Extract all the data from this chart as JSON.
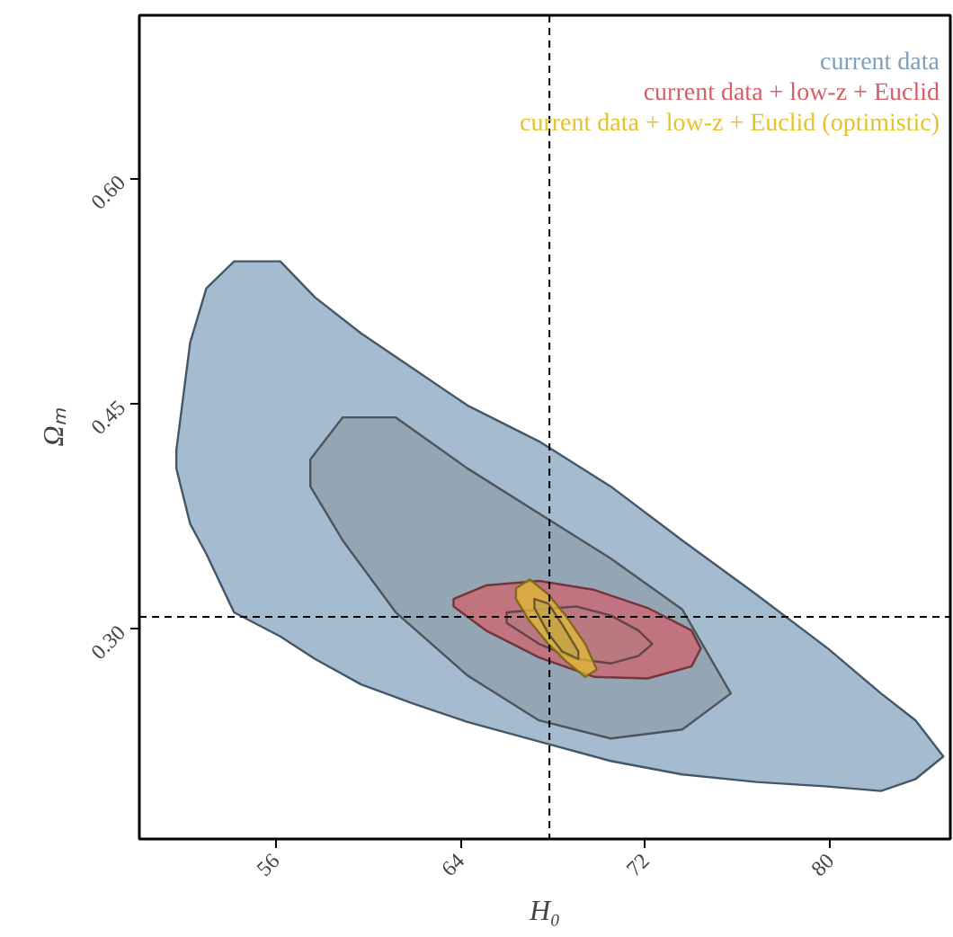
{
  "chart_data": {
    "type": "area",
    "xlabel": "H₀",
    "ylabel": "Ωₘ",
    "xlim": [
      50.1,
      85.2
    ],
    "ylim": [
      0.16,
      0.709
    ],
    "xticks": [
      56,
      64,
      72,
      80
    ],
    "yticks": [
      {
        "value": 0.3,
        "label": "0.30"
      },
      {
        "value": 0.45,
        "label": "0.45"
      },
      {
        "value": 0.6,
        "label": "0.60"
      }
    ],
    "grid": false,
    "legend": "top right",
    "ref_lines": [
      {
        "axis": "x",
        "value": 67.85,
        "line_style": "dashed",
        "color": "#000000"
      },
      {
        "axis": "y",
        "value": 0.308,
        "line_style": "dashed",
        "color": "#000000"
      }
    ],
    "series": [
      {
        "name": "current data",
        "color": "#7f9fbc",
        "x": [
          51.7,
          52.3,
          53.0,
          54.2,
          56.2,
          57.7,
          59.7,
          62.0,
          64.3,
          67.4,
          70.5,
          73.6,
          76.8,
          79.9,
          82.2,
          83.7,
          84.9,
          83.7,
          82.2,
          79.9,
          76.8,
          73.6,
          70.5,
          67.4,
          64.3,
          62.0,
          59.7,
          57.7,
          56.2,
          54.2,
          53.0,
          52.3,
          51.7
        ],
        "values": [
          0.419,
          0.491,
          0.527,
          0.545,
          0.545,
          0.521,
          0.497,
          0.473,
          0.449,
          0.425,
          0.395,
          0.359,
          0.323,
          0.287,
          0.257,
          0.239,
          0.215,
          0.2,
          0.192,
          0.195,
          0.198,
          0.203,
          0.212,
          0.225,
          0.238,
          0.25,
          0.263,
          0.28,
          0.295,
          0.311,
          0.35,
          0.37,
          0.407
        ]
      },
      {
        "color": "#8d9ca8",
        "x": [
          57.5,
          58.9,
          61.2,
          64.3,
          67.4,
          70.5,
          73.6,
          75.7,
          73.6,
          70.5,
          67.4,
          64.3,
          61.2,
          58.9,
          57.5
        ],
        "values": [
          0.413,
          0.441,
          0.441,
          0.407,
          0.377,
          0.347,
          0.313,
          0.257,
          0.233,
          0.227,
          0.239,
          0.269,
          0.311,
          0.359,
          0.395
        ]
      },
      {
        "name": "current data + low-z + Euclid",
        "color": "#d4606a",
        "x": [
          63.7,
          65.1,
          67.4,
          69.8,
          72.1,
          74.0,
          74.4,
          74.0,
          72.1,
          69.8,
          67.4,
          65.1,
          63.7
        ],
        "values": [
          0.32,
          0.329,
          0.332,
          0.326,
          0.314,
          0.299,
          0.287,
          0.275,
          0.267,
          0.268,
          0.281,
          0.299,
          0.315
        ]
      },
      {
        "color": "#b67a80",
        "x": [
          66.0,
          69.0,
          70.5,
          71.7,
          72.3,
          71.7,
          70.5,
          69.0,
          67.4,
          66.0
        ],
        "values": [
          0.311,
          0.315,
          0.309,
          0.299,
          0.29,
          0.282,
          0.277,
          0.28,
          0.29,
          0.304
        ]
      },
      {
        "name": "current data + low-z + Euclid (optimistic)",
        "color": "#e6c230",
        "x": [
          66.4,
          67.0,
          67.8,
          68.6,
          69.4,
          69.9,
          69.4,
          68.6,
          67.8,
          67.0,
          66.4
        ],
        "values": [
          0.327,
          0.333,
          0.323,
          0.308,
          0.29,
          0.273,
          0.268,
          0.278,
          0.29,
          0.305,
          0.32
        ]
      },
      {
        "color": "#c2a14a",
        "x": [
          67.2,
          67.8,
          68.4,
          69.1,
          69.1,
          68.4,
          67.8,
          67.2
        ],
        "values": [
          0.32,
          0.317,
          0.303,
          0.285,
          0.28,
          0.285,
          0.297,
          0.314
        ]
      }
    ]
  }
}
